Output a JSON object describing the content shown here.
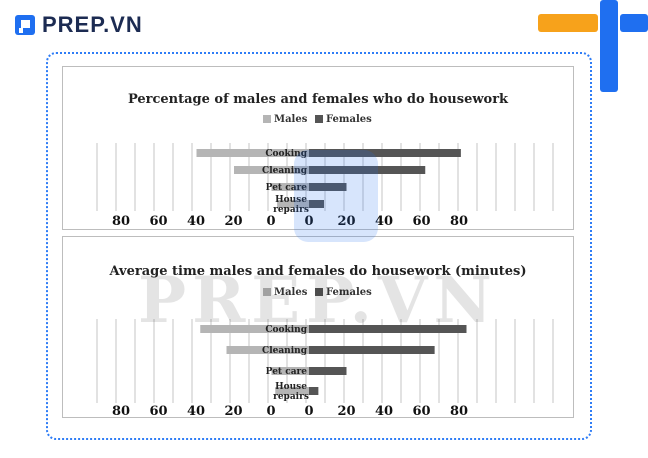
{
  "brand": {
    "name": "PREP.VN",
    "watermark": "PREP.VN",
    "accent": "#1f6ff0",
    "orange": "#f7a21b"
  },
  "chart_data": [
    {
      "type": "bar",
      "orientation": "horizontal-diverging",
      "title": "Percentage of males and females who do housework",
      "categories": [
        "Cooking",
        "Cleaning",
        "Pet care",
        "House repairs"
      ],
      "series": [
        {
          "name": "Males",
          "values": [
            60,
            40,
            20,
            17
          ],
          "color": "#b5b5b5"
        },
        {
          "name": "Females",
          "values": [
            81,
            62,
            20,
            8
          ],
          "color": "#555555"
        }
      ],
      "left_ticks": [
        "80",
        "60",
        "40",
        "20",
        "0"
      ],
      "right_ticks": [
        "0",
        "20",
        "40",
        "60",
        "80"
      ],
      "xlim": [
        0,
        80
      ],
      "grid": true,
      "legend": "top-center"
    },
    {
      "type": "bar",
      "orientation": "horizontal-diverging",
      "title": "Average time males and females do housework (minutes)",
      "categories": [
        "Cooking",
        "Cleaning",
        "Pet care",
        "House repairs"
      ],
      "series": [
        {
          "name": "Males",
          "values": [
            58,
            44,
            20,
            18
          ],
          "color": "#b5b5b5"
        },
        {
          "name": "Females",
          "values": [
            84,
            67,
            20,
            5
          ],
          "color": "#555555"
        }
      ],
      "left_ticks": [
        "80",
        "60",
        "40",
        "20",
        "0"
      ],
      "right_ticks": [
        "0",
        "20",
        "40",
        "60",
        "80"
      ],
      "xlim": [
        0,
        80
      ],
      "grid": true,
      "legend": "top-center"
    }
  ]
}
